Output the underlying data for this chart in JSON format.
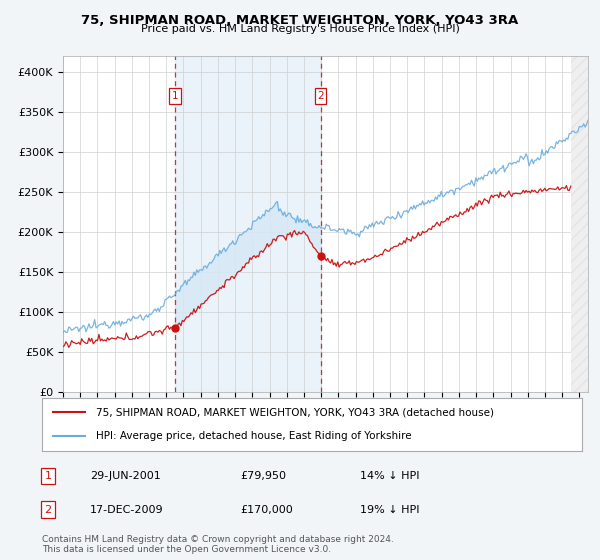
{
  "title": "75, SHIPMAN ROAD, MARKET WEIGHTON, YORK, YO43 3RA",
  "subtitle": "Price paid vs. HM Land Registry's House Price Index (HPI)",
  "legend_line1": "75, SHIPMAN ROAD, MARKET WEIGHTON, YORK, YO43 3RA (detached house)",
  "legend_line2": "HPI: Average price, detached house, East Riding of Yorkshire",
  "footer": "Contains HM Land Registry data © Crown copyright and database right 2024.\nThis data is licensed under the Open Government Licence v3.0.",
  "sale1_label": "1",
  "sale1_date": "29-JUN-2001",
  "sale1_price": "£79,950",
  "sale1_hpi": "14% ↓ HPI",
  "sale2_label": "2",
  "sale2_date": "17-DEC-2009",
  "sale2_price": "£170,000",
  "sale2_hpi": "19% ↓ HPI",
  "hpi_color": "#6aacde",
  "paid_color": "#CC1111",
  "vline_color": "#CC1111",
  "shade_color": "#d6e8f5",
  "background_color": "#f2f5f8",
  "plot_bg_color": "#ffffff",
  "ylim": [
    0,
    420000
  ],
  "xlim_start": 1995.0,
  "xlim_end": 2025.5,
  "sale1_x": 2001.49,
  "sale1_y": 79950,
  "sale2_x": 2009.96,
  "sale2_y": 170000,
  "yticks": [
    0,
    50000,
    100000,
    150000,
    200000,
    250000,
    300000,
    350000,
    400000
  ],
  "ytick_labels": [
    "£0",
    "£50K",
    "£100K",
    "£150K",
    "£200K",
    "£250K",
    "£300K",
    "£350K",
    "£400K"
  ]
}
